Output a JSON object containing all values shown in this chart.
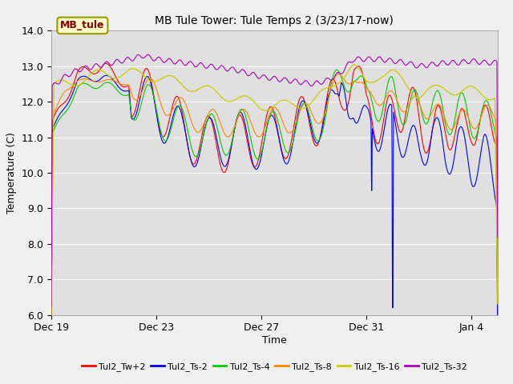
{
  "title": "MB Tule Tower: Tule Temps 2 (3/23/17-now)",
  "xlabel": "Time",
  "ylabel": "Temperature (C)",
  "ylim": [
    6.0,
    14.0
  ],
  "yticks": [
    6.0,
    7.0,
    8.0,
    9.0,
    10.0,
    11.0,
    12.0,
    13.0,
    14.0
  ],
  "fig_bg_color": "#f0f0f0",
  "plot_bg_color": "#e0e0e0",
  "legend_label": "MB_tule",
  "series": [
    {
      "label": "Tul2_Tw+2",
      "color": "#ff0000"
    },
    {
      "label": "Tul2_Ts-2",
      "color": "#0000ff"
    },
    {
      "label": "Tul2_Ts-4",
      "color": "#00cc00"
    },
    {
      "label": "Tul2_Ts-8",
      "color": "#ff8800"
    },
    {
      "label": "Tul2_Ts-16",
      "color": "#cccc00"
    },
    {
      "label": "Tul2_Ts-32",
      "color": "#aa00bb"
    }
  ],
  "xtick_labels": [
    "Dec 19",
    "Dec 23",
    "Dec 27",
    "Dec 31",
    "Jan 4"
  ],
  "xtick_positions": [
    0,
    4,
    8,
    12,
    16
  ],
  "xlim": [
    0,
    17
  ]
}
